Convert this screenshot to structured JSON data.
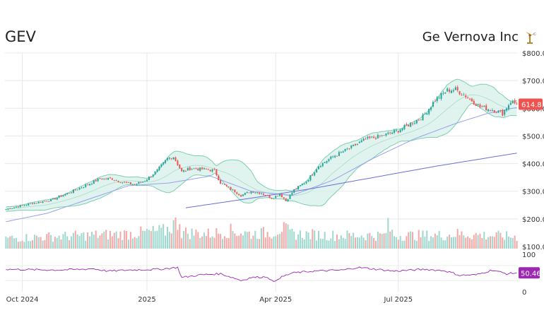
{
  "header": {
    "ticker": "GEV",
    "company": "Ge Vernova Inc",
    "logo_icon": "wind-turbine-icon"
  },
  "colors": {
    "up": "#26a69a",
    "down": "#ef5350",
    "band_fill": "#d6efe8",
    "band_line": "#7ccfb0",
    "sma_short": "#9aa0ee",
    "sma_long": "#6b6fd6",
    "rsi": "#9c27b0",
    "price_badge": "#ef5350",
    "rsi_badge": "#9c27b0",
    "grid": "#e8e8e8"
  },
  "chart_data": {
    "type": "candlestick",
    "price_axis": {
      "ticks": [
        100,
        200,
        300,
        400,
        500,
        600,
        700,
        800
      ],
      "labels": [
        "$100.0",
        "$200.0",
        "$300.0",
        "$400.0",
        "$500.0",
        "$600.0",
        "$700.0",
        "$800.0"
      ],
      "range": [
        100,
        800
      ]
    },
    "x_axis": {
      "labels": [
        "Oct 2024",
        "2025",
        "Apr 2025",
        "Jul 2025"
      ],
      "label_index": [
        8,
        69,
        132,
        192
      ]
    },
    "last_price": 614.8,
    "last_price_label": "614.8",
    "rsi": {
      "ticks": [
        0,
        100
      ],
      "labels": [
        "0",
        "100"
      ],
      "last": 50.46,
      "last_label": "50.46"
    },
    "close_anchors": [
      [
        0,
        235
      ],
      [
        12,
        255
      ],
      [
        22,
        268
      ],
      [
        30,
        292
      ],
      [
        38,
        318
      ],
      [
        46,
        345
      ],
      [
        52,
        345
      ],
      [
        58,
        330
      ],
      [
        63,
        325
      ],
      [
        68,
        338
      ],
      [
        74,
        375
      ],
      [
        79,
        418
      ],
      [
        82,
        425
      ],
      [
        86,
        370
      ],
      [
        90,
        382
      ],
      [
        96,
        380
      ],
      [
        102,
        375
      ],
      [
        105,
        330
      ],
      [
        110,
        308
      ],
      [
        115,
        285
      ],
      [
        120,
        300
      ],
      [
        125,
        293
      ],
      [
        130,
        275
      ],
      [
        134,
        290
      ],
      [
        137,
        265
      ],
      [
        141,
        305
      ],
      [
        147,
        335
      ],
      [
        153,
        392
      ],
      [
        160,
        425
      ],
      [
        168,
        455
      ],
      [
        176,
        488
      ],
      [
        184,
        500
      ],
      [
        192,
        520
      ],
      [
        199,
        548
      ],
      [
        204,
        570
      ],
      [
        210,
        630
      ],
      [
        216,
        665
      ],
      [
        220,
        668
      ],
      [
        226,
        640
      ],
      [
        232,
        605
      ],
      [
        238,
        595
      ],
      [
        243,
        582
      ],
      [
        247,
        625
      ],
      [
        250,
        614.8
      ]
    ],
    "volume_anchors": [
      [
        0,
        0.35
      ],
      [
        20,
        0.4
      ],
      [
        40,
        0.45
      ],
      [
        60,
        0.5
      ],
      [
        78,
        0.6
      ],
      [
        85,
        1.0
      ],
      [
        86,
        0.55
      ],
      [
        100,
        0.5
      ],
      [
        110,
        0.6
      ],
      [
        120,
        0.5
      ],
      [
        131,
        0.55
      ],
      [
        133,
        0.65
      ],
      [
        135,
        0.7
      ],
      [
        140,
        0.5
      ],
      [
        160,
        0.45
      ],
      [
        185,
        0.45
      ],
      [
        187,
        0.75
      ],
      [
        190,
        0.45
      ],
      [
        215,
        0.45
      ],
      [
        220,
        0.5
      ],
      [
        250,
        0.4
      ]
    ],
    "rsi_anchors": [
      [
        0,
        60
      ],
      [
        25,
        58
      ],
      [
        38,
        60
      ],
      [
        42,
        62
      ],
      [
        50,
        55
      ],
      [
        60,
        58
      ],
      [
        75,
        60
      ],
      [
        84,
        65
      ],
      [
        86,
        38
      ],
      [
        95,
        45
      ],
      [
        105,
        48
      ],
      [
        112,
        36
      ],
      [
        115,
        30
      ],
      [
        120,
        38
      ],
      [
        128,
        40
      ],
      [
        131,
        25
      ],
      [
        133,
        35
      ],
      [
        140,
        50
      ],
      [
        150,
        55
      ],
      [
        165,
        58
      ],
      [
        172,
        65
      ],
      [
        178,
        62
      ],
      [
        190,
        55
      ],
      [
        205,
        60
      ],
      [
        215,
        56
      ],
      [
        222,
        44
      ],
      [
        230,
        45
      ],
      [
        238,
        58
      ],
      [
        245,
        48
      ],
      [
        250,
        50.46
      ]
    ],
    "sma_long_anchors": [
      [
        88,
        240
      ],
      [
        120,
        275
      ],
      [
        150,
        310
      ],
      [
        180,
        350
      ],
      [
        210,
        390
      ],
      [
        250,
        438
      ]
    ],
    "sma_short_anchors": [
      [
        0,
        190
      ],
      [
        20,
        220
      ],
      [
        40,
        270
      ],
      [
        60,
        320
      ],
      [
        80,
        330
      ],
      [
        100,
        355
      ],
      [
        120,
        300
      ],
      [
        140,
        285
      ],
      [
        160,
        340
      ],
      [
        180,
        420
      ],
      [
        200,
        490
      ],
      [
        220,
        545
      ],
      [
        235,
        580
      ],
      [
        250,
        603
      ]
    ]
  }
}
